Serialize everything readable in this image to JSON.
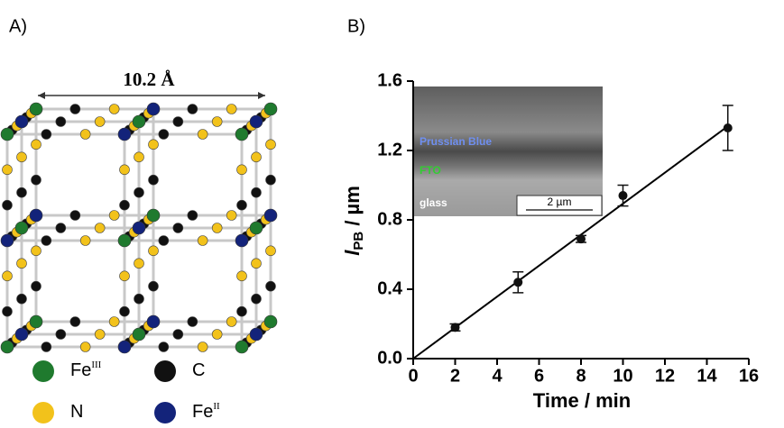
{
  "diagram": {
    "panel_label": "A)",
    "dimension": "10.2 Å",
    "legend": [
      {
        "symbol": "Fe",
        "sup": "III",
        "color": "#1f7a2e"
      },
      {
        "symbol": "C",
        "color": "#111111"
      },
      {
        "symbol": "N",
        "color": "#f2c21b"
      },
      {
        "symbol": "Fe",
        "sup": "II",
        "color": "#13237a"
      }
    ]
  },
  "chart_data": {
    "type": "scatter",
    "panel_label": "B)",
    "xlabel": "Time / min",
    "ylabel": {
      "main": "l",
      "sub": "PB",
      "rest": " / µm"
    },
    "x": [
      2,
      5,
      8,
      10,
      15
    ],
    "values": [
      0.18,
      0.44,
      0.69,
      0.94,
      1.33
    ],
    "errors": [
      0.02,
      0.06,
      0.02,
      0.06,
      0.13
    ],
    "color": "#111111",
    "fit_x": [
      0,
      15
    ],
    "fit_values": [
      0,
      1.34
    ],
    "xlim": [
      0,
      16
    ],
    "xticks": [
      0,
      2,
      4,
      6,
      8,
      10,
      12,
      14,
      16
    ],
    "ylim": [
      0,
      1.6
    ],
    "yticks": [
      {
        "value": 0,
        "label": "0.0"
      },
      {
        "value": 0.4,
        "label": "0.4"
      },
      {
        "value": 0.8,
        "label": "0.8"
      },
      {
        "value": 1.2,
        "label": "1.2"
      },
      {
        "value": 1.6,
        "label": "1.6"
      }
    ],
    "inset": {
      "layers": [
        "Prussian Blue",
        "FTO",
        "glass"
      ],
      "scale_bar": "2 µm"
    }
  }
}
